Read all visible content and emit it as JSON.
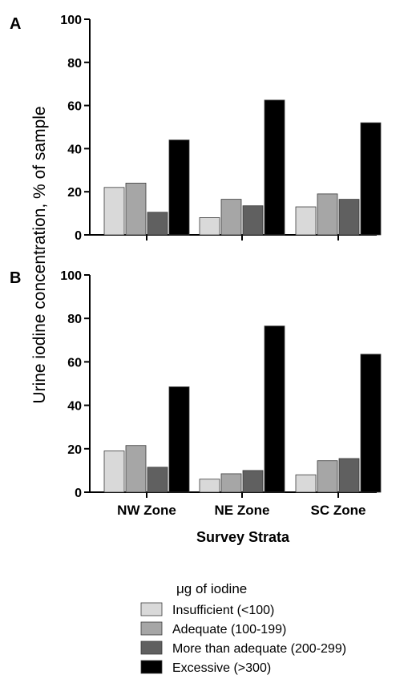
{
  "chart_data": [
    {
      "type": "bar",
      "panel_label": "A",
      "categories": [
        "NW Zone",
        "NE Zone",
        "SC Zone"
      ],
      "series": [
        {
          "name": "Insufficient (<100)",
          "values": [
            22,
            8,
            13
          ]
        },
        {
          "name": "Adequate (100-199)",
          "values": [
            24,
            16.5,
            19
          ]
        },
        {
          "name": "More than adequate (200-299)",
          "values": [
            10.5,
            13.5,
            16.5
          ]
        },
        {
          "name": "Excessive (>300)",
          "values": [
            44,
            62.5,
            52
          ]
        }
      ],
      "ylim": [
        0,
        100
      ],
      "yticks": [
        "0",
        "20",
        "40",
        "60",
        "80",
        "100"
      ],
      "show_category_labels": false
    },
    {
      "type": "bar",
      "panel_label": "B",
      "categories": [
        "NW Zone",
        "NE Zone",
        "SC Zone"
      ],
      "series": [
        {
          "name": "Insufficient (<100)",
          "values": [
            19,
            6,
            8
          ]
        },
        {
          "name": "Adequate (100-199)",
          "values": [
            21.5,
            8.5,
            14.5
          ]
        },
        {
          "name": "More than adequate (200-299)",
          "values": [
            11.5,
            10,
            15.5
          ]
        },
        {
          "name": "Excessive (>300)",
          "values": [
            48.5,
            76.5,
            63.5
          ]
        }
      ],
      "ylim": [
        0,
        100
      ],
      "yticks": [
        "0",
        "20",
        "40",
        "60",
        "80",
        "100"
      ],
      "show_category_labels": true
    }
  ],
  "ylabel": "Urine iodine concentration, % of sample",
  "xlabel": "Survey Strata",
  "legend": {
    "title": "μg of iodine",
    "placement": "bottom",
    "entries": [
      {
        "label": "Insufficient (<100)",
        "color": "#d9d9d9"
      },
      {
        "label": "Adequate (100-199)",
        "color": "#a6a6a6"
      },
      {
        "label": "More than adequate (200-299)",
        "color": "#606060"
      },
      {
        "label": "Excessive (>300)",
        "color": "#000000"
      }
    ]
  }
}
